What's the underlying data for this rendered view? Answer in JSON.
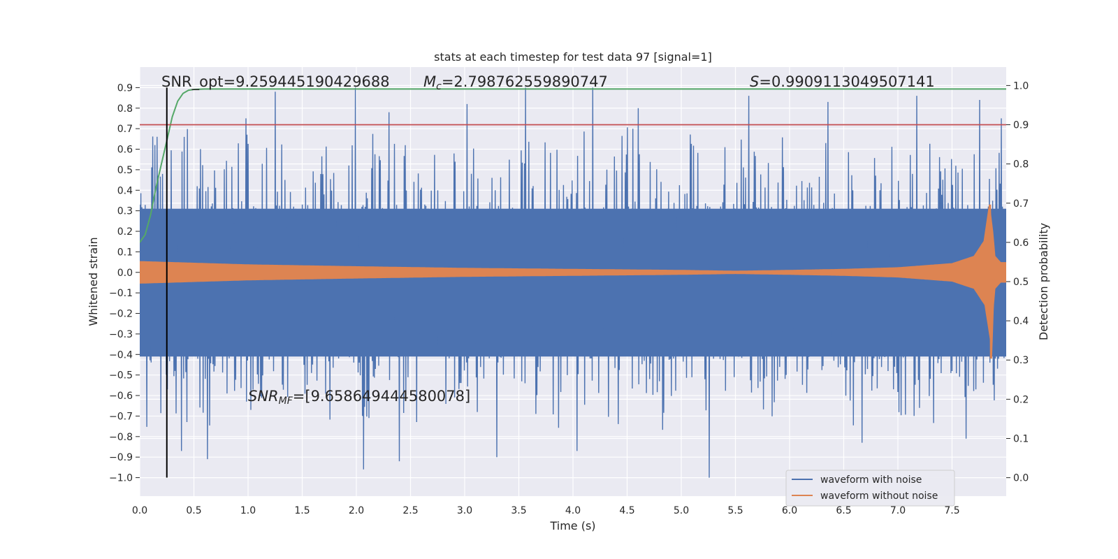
{
  "chart_data": {
    "type": "line",
    "title": "stats at each timestep for test data 97 [signal=1]",
    "xlabel": "Time (s)",
    "ylabel": "Whitened strain",
    "y2label": "Detection probability",
    "xlim": [
      0.0,
      8.0
    ],
    "ylim": [
      -1.09,
      1.0
    ],
    "y2lim": [
      -0.047,
      1.047
    ],
    "xticks": [
      "0.0",
      "0.5",
      "1.0",
      "1.5",
      "2.0",
      "2.5",
      "3.0",
      "3.5",
      "4.0",
      "4.5",
      "5.0",
      "5.5",
      "6.0",
      "6.5",
      "7.0",
      "7.5"
    ],
    "yticks": [
      "0.9",
      "0.8",
      "0.7",
      "0.6",
      "0.5",
      "0.4",
      "0.3",
      "0.2",
      "0.1",
      "0.0",
      "−0.1",
      "−0.2",
      "−0.3",
      "−0.4",
      "−0.5",
      "−0.6",
      "−0.7",
      "−0.8",
      "−0.9",
      "−1.0"
    ],
    "y2ticks": [
      "1.0",
      "0.9",
      "0.8",
      "0.7",
      "0.6",
      "0.5",
      "0.4",
      "0.3",
      "0.2",
      "0.1",
      "0.0"
    ],
    "grid": true,
    "legend_position": "lower-right",
    "series": [
      {
        "name": "waveform with noise",
        "color": "#4c72b0",
        "axis": "left",
        "description_type": "noise",
        "typical_range": [
          -0.43,
          0.33
        ],
        "peak_positive": [
          [
            0.14,
            0.62
          ],
          [
            0.41,
            0.66
          ],
          [
            0.98,
            0.75
          ],
          [
            1.25,
            0.88
          ],
          [
            1.99,
            0.9
          ],
          [
            2.3,
            0.78
          ],
          [
            3.02,
            0.82
          ],
          [
            3.56,
            0.9
          ],
          [
            4.18,
            0.9
          ],
          [
            4.6,
            0.8
          ],
          [
            5.62,
            0.86
          ],
          [
            6.35,
            0.83
          ],
          [
            7.17,
            0.86
          ],
          [
            7.75,
            0.84
          ],
          [
            7.95,
            0.75
          ]
        ],
        "peak_negative": [
          [
            0.39,
            -0.87
          ],
          [
            0.63,
            -0.91
          ],
          [
            1.03,
            -0.67
          ],
          [
            2.07,
            -0.96
          ],
          [
            2.4,
            -0.92
          ],
          [
            3.3,
            -0.9
          ],
          [
            4.04,
            -0.87
          ],
          [
            5.26,
            -1.0
          ],
          [
            6.67,
            -0.83
          ],
          [
            7.63,
            -0.81
          ]
        ]
      },
      {
        "name": "waveform without noise",
        "color": "#dd8452",
        "axis": "left",
        "description_type": "chirp",
        "envelope": [
          [
            0.0,
            0.055
          ],
          [
            0.5,
            0.047
          ],
          [
            1.0,
            0.039
          ],
          [
            2.0,
            0.03
          ],
          [
            3.0,
            0.022
          ],
          [
            4.0,
            0.017
          ],
          [
            5.0,
            0.012
          ],
          [
            5.5,
            0.008
          ],
          [
            6.0,
            0.012
          ],
          [
            6.5,
            0.017
          ],
          [
            7.0,
            0.025
          ],
          [
            7.5,
            0.045
          ],
          [
            7.7,
            0.08
          ],
          [
            7.8,
            0.16
          ],
          [
            7.85,
            0.33
          ],
          [
            7.88,
            0.2
          ],
          [
            7.9,
            0.08
          ],
          [
            7.95,
            0.05
          ],
          [
            8.0,
            0.05
          ]
        ],
        "chirp_peak": [
          7.85,
          0.33,
          -0.42
        ]
      },
      {
        "name": "",
        "color": "#55a868",
        "axis": "right",
        "x": [
          0.0,
          0.05,
          0.1,
          0.15,
          0.2,
          0.25,
          0.3,
          0.35,
          0.4,
          0.45,
          0.5,
          0.6,
          0.8,
          1.0,
          2.0,
          4.0,
          6.0,
          8.0
        ],
        "y": [
          0.6,
          0.62,
          0.67,
          0.74,
          0.8,
          0.86,
          0.92,
          0.96,
          0.98,
          0.988,
          0.99,
          0.991,
          0.991,
          0.991,
          0.991,
          0.991,
          0.991,
          0.991
        ]
      },
      {
        "name": "",
        "color": "#c44e52",
        "axis": "right",
        "x": [
          0.0,
          8.0
        ],
        "y": [
          0.9,
          0.9
        ]
      }
    ],
    "vline": {
      "x": 0.25,
      "ymin": -1.0,
      "ymax": 0.9,
      "color": "#000000"
    },
    "annotations": {
      "snr_opt": "SNR_opt=9.259445190429688",
      "mc_symbol": "M",
      "mc_sub": "c",
      "mc_value": "=2.798762559890747",
      "s_symbol": "S",
      "s_value": "=0.9909113049507141",
      "snr_mf_symbol": "SNR",
      "snr_mf_sub": "MF",
      "snr_mf_value": "=[9.658649444580078]"
    },
    "colors": {
      "background": "#eaeaf2",
      "grid": "#ffffff",
      "noise": "#4c72b0",
      "clean": "#dd8452",
      "prob": "#55a868",
      "threshold": "#c44e52"
    }
  }
}
